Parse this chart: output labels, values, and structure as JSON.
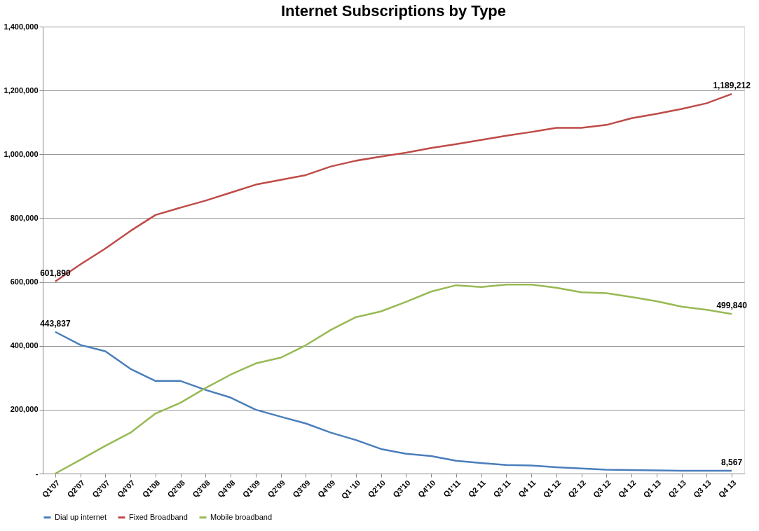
{
  "chart_data": {
    "type": "line",
    "title": "Internet Subscriptions by Type",
    "categories": [
      "Q1'07",
      "Q2'07",
      "Q3'07",
      "Q4'07",
      "Q1'08",
      "Q2'08",
      "Q3'08",
      "Q4'08",
      "Q1'09",
      "Q2'09",
      "Q3'09",
      "Q4'09",
      "Q1 '10",
      "Q2'10",
      "Q3'10",
      "Q4'10",
      "Q1'11",
      "Q2 11",
      "Q3 11",
      "Q4 11",
      "Q1 12",
      "Q2 12",
      "Q3 12",
      "Q4 12",
      "Q1 13",
      "Q2 13",
      "Q3 13",
      "Q4 13"
    ],
    "series": [
      {
        "name": "Dial up internet",
        "color": "#4a7ebb",
        "values": [
          443837,
          403000,
          383000,
          328000,
          290000,
          290000,
          262000,
          238000,
          200000,
          178000,
          157000,
          128000,
          105000,
          77000,
          62000,
          55000,
          40000,
          33000,
          27000,
          25000,
          20000,
          16000,
          12000,
          11000,
          10000,
          9000,
          9000,
          8567
        ],
        "value_labels": [
          "443,837",
          null,
          null,
          null,
          null,
          null,
          null,
          null,
          null,
          null,
          null,
          null,
          null,
          null,
          null,
          null,
          null,
          null,
          null,
          null,
          null,
          null,
          null,
          null,
          null,
          null,
          null,
          "8,567"
        ]
      },
      {
        "name": "Fixed Broadband",
        "color": "#be4b48",
        "values": [
          601890,
          655000,
          705000,
          760000,
          810000,
          833000,
          855000,
          880000,
          905000,
          920000,
          935000,
          962000,
          980000,
          993000,
          1005000,
          1020000,
          1032000,
          1045000,
          1058000,
          1070000,
          1083000,
          1083000,
          1092000,
          1113000,
          1127000,
          1142000,
          1160000,
          1189212
        ],
        "value_labels": [
          "601,890",
          null,
          null,
          null,
          null,
          null,
          null,
          null,
          null,
          null,
          null,
          null,
          null,
          null,
          null,
          null,
          null,
          null,
          null,
          null,
          null,
          null,
          null,
          null,
          null,
          null,
          null,
          "1,189,212"
        ]
      },
      {
        "name": "Mobile broadband",
        "color": "#98b954",
        "values": [
          0,
          43000,
          87000,
          128000,
          188000,
          222000,
          268000,
          310000,
          345000,
          363000,
          402000,
          450000,
          490000,
          508000,
          538000,
          570000,
          590000,
          584000,
          592000,
          592000,
          582000,
          568000,
          565000,
          553000,
          540000,
          523000,
          513000,
          499840
        ],
        "value_labels": [
          null,
          null,
          null,
          null,
          null,
          null,
          null,
          null,
          null,
          null,
          null,
          null,
          null,
          null,
          null,
          null,
          null,
          null,
          null,
          null,
          null,
          null,
          null,
          null,
          null,
          null,
          null,
          "499,840"
        ]
      }
    ],
    "ylim": [
      0,
      1400000
    ],
    "yticks": [
      {
        "value": 0,
        "label": "-"
      },
      {
        "value": 200000,
        "label": "200,000"
      },
      {
        "value": 400000,
        "label": "400,000"
      },
      {
        "value": 600000,
        "label": "600,000"
      },
      {
        "value": 800000,
        "label": "800,000"
      },
      {
        "value": 1000000,
        "label": "1,000,000"
      },
      {
        "value": 1200000,
        "label": "1,200,000"
      },
      {
        "value": 1400000,
        "label": "1,400,000"
      }
    ],
    "grid": "y",
    "legend": "bottom",
    "marker": "none",
    "line_style": "solid"
  }
}
